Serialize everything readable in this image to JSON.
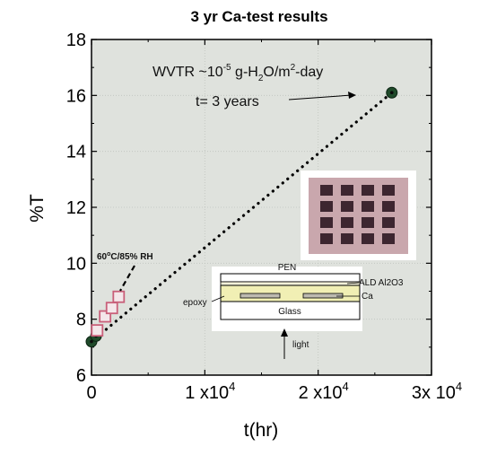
{
  "chart_data": {
    "type": "scatter",
    "title": "3 yr Ca-test results",
    "xlabel": "t(hr)",
    "ylabel": "%T",
    "xlim": [
      0,
      30000
    ],
    "ylim": [
      6,
      18
    ],
    "x_ticks": [
      {
        "value": 0,
        "label": "0"
      },
      {
        "value": 10000,
        "label": "1 x10"
      },
      {
        "value": 20000,
        "label": "2 x10"
      },
      {
        "value": 30000,
        "label": "3x 10"
      }
    ],
    "x_tick_exponent": "4",
    "y_ticks": [
      6,
      8,
      10,
      12,
      14,
      16,
      18
    ],
    "grid": true,
    "background": "#dfe2dd",
    "series": [
      {
        "marker": "dark-green-circle",
        "color": "#1f4a2a",
        "points": [
          [
            0,
            7.2
          ],
          [
            400,
            7.4
          ],
          [
            26500,
            16.1
          ]
        ]
      },
      {
        "marker": "pink-open-square",
        "color": "#c9607a",
        "points": [
          [
            500,
            7.6
          ],
          [
            1200,
            8.1
          ],
          [
            1800,
            8.4
          ],
          [
            2400,
            8.8
          ]
        ]
      }
    ],
    "trendline": {
      "style": "dotted",
      "from": [
        0,
        7.2
      ],
      "to": [
        26500,
        16.1
      ]
    },
    "annotations": {
      "wvtr_prefix": "WVTR ~10",
      "wvtr_exp": "-5",
      "wvtr_mid": " g-H",
      "wvtr_sub": "2",
      "wvtr_mid2": "O/m",
      "wvtr_sup2": "2",
      "wvtr_suffix": "-day",
      "duration": "t= 3 years",
      "condition_prefix": "60",
      "condition_deg": "o",
      "condition_suffix": "C/85% RH"
    },
    "inset_schematic": {
      "layers": {
        "pen": "PEN",
        "ald": "ALD Al2O3",
        "ca": "Ca",
        "epoxy": "epoxy",
        "glass": "Glass"
      },
      "light_label": "light"
    }
  }
}
